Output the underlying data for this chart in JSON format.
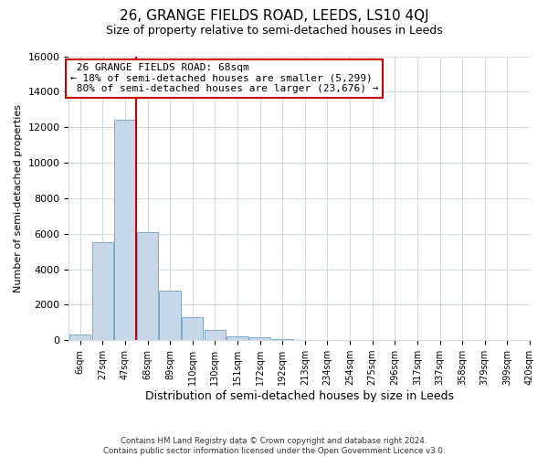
{
  "title": "26, GRANGE FIELDS ROAD, LEEDS, LS10 4QJ",
  "subtitle": "Size of property relative to semi-detached houses in Leeds",
  "xlabel": "Distribution of semi-detached houses by size in Leeds",
  "ylabel": "Number of semi-detached properties",
  "bin_labels": [
    "6sqm",
    "27sqm",
    "47sqm",
    "68sqm",
    "89sqm",
    "110sqm",
    "130sqm",
    "151sqm",
    "172sqm",
    "192sqm",
    "213sqm",
    "234sqm",
    "254sqm",
    "275sqm",
    "296sqm",
    "317sqm",
    "337sqm",
    "358sqm",
    "379sqm",
    "399sqm",
    "420sqm"
  ],
  "bar_heights": [
    300,
    5500,
    12400,
    6100,
    2800,
    1300,
    600,
    230,
    150,
    70,
    0,
    0,
    0,
    0,
    0,
    0,
    0,
    0,
    0,
    0
  ],
  "property_bin_index": 3,
  "property_sqm": 68,
  "pct_smaller": 18,
  "n_smaller": 5299,
  "pct_larger": 80,
  "n_larger": 23676,
  "bar_color": "#c8d8e8",
  "bar_edge_color": "#7aa8cc",
  "line_color": "#cc0000",
  "annotation_box_edge_color": "#cc0000",
  "background_color": "#ffffff",
  "footer_line1": "Contains HM Land Registry data © Crown copyright and database right 2024.",
  "footer_line2": "Contains public sector information licensed under the Open Government Licence v3.0.",
  "ylim": [
    0,
    16000
  ],
  "yticks": [
    0,
    2000,
    4000,
    6000,
    8000,
    10000,
    12000,
    14000,
    16000
  ],
  "grid_color": "#d0d8e0",
  "n_bins_total": 20
}
